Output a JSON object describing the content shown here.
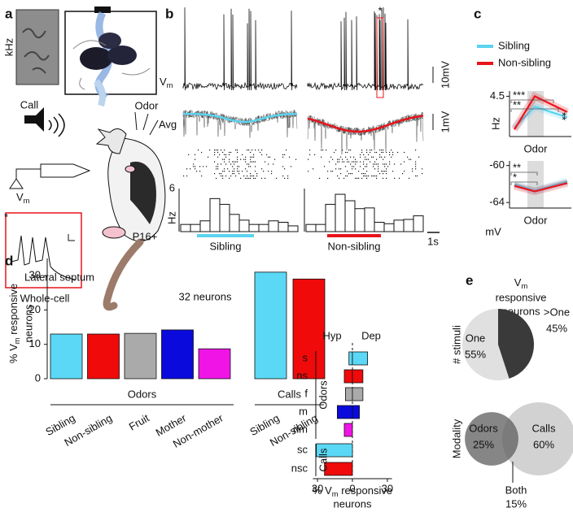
{
  "figure": {
    "panel_labels": [
      "a",
      "b",
      "c",
      "d",
      "e"
    ],
    "panel_a": {
      "freq_label": "kHz",
      "call_label": "Call",
      "odor_label": "Odor",
      "vm_label": [
        "V",
        "m"
      ],
      "asterisk": "*",
      "recording_label": "Whole-cell",
      "age_label": "P16+"
    },
    "panel_b": {
      "vm_label": [
        "V",
        "m"
      ],
      "avg_label": "Avg",
      "scale_top": "10mV",
      "scale_avg": "1mV",
      "asterisk": "*",
      "time_scale": "1s"
    },
    "panel_d": {
      "title": "Lateral septum"
    }
  },
  "chart_data": [
    {
      "type": "bar",
      "y_label": "Hz",
      "ylim": [
        0,
        6
      ],
      "yticks": [
        6
      ],
      "categories": [
        null,
        null,
        null,
        null,
        null,
        null,
        null,
        null,
        null,
        null,
        null,
        null
      ],
      "series": [
        {
          "name": "Sibling",
          "color": "#5bd3f0",
          "values": [
            1,
            1,
            1.5,
            4.6,
            3.8,
            2.4,
            1.6,
            1,
            1,
            1.5,
            1.3,
            0.8
          ]
        },
        {
          "name": "Non-sibling",
          "color": "#e8141c",
          "values": [
            1,
            1,
            3.8,
            5.2,
            4.3,
            3.2,
            3.3,
            1.3,
            1.1,
            1.6,
            1.7,
            2.2
          ]
        }
      ]
    },
    {
      "type": "line",
      "y_label": "Hz",
      "x_label": "Odor",
      "ylim": [
        2.2,
        4.8
      ],
      "yticks": [
        4.5
      ],
      "categories": [
        null,
        null,
        null
      ],
      "legend": "top",
      "series": [
        {
          "name": "Sibling",
          "color": "#5bd3f0",
          "values": [
            2.7,
            3.9,
            3.3
          ]
        },
        {
          "name": "Non-sibling",
          "color": "#e8141c",
          "values": [
            2.6,
            4.5,
            3.6
          ]
        }
      ],
      "annotations": [
        {
          "text": "***",
          "color": "#e8141c"
        },
        {
          "text": "**",
          "color": "#5bd3f0"
        },
        {
          "text": "**",
          "color": "#000000"
        }
      ]
    },
    {
      "type": "line",
      "y_label": "mV",
      "x_label": "Odor",
      "ylim": [
        -64.6,
        -59.5
      ],
      "yticks": [
        -60,
        -64
      ],
      "categories": [
        null,
        null,
        null
      ],
      "series": [
        {
          "color": "#5bd3f0",
          "values": [
            -62.0,
            -62.7,
            -61.7
          ]
        },
        {
          "color": "#e8141c",
          "values": [
            -62.2,
            -62.8,
            -61.9
          ]
        }
      ],
      "annotations": [
        {
          "text": "**",
          "color": "#e8141c"
        },
        {
          "text": "*",
          "color": "#5bd3f0"
        }
      ]
    },
    {
      "type": "bar",
      "y_label": [
        "% V",
        "m",
        " responsive",
        "neurons"
      ],
      "annotation": "32 neurons",
      "ylim": [
        0,
        35
      ],
      "yticks": [
        0,
        10,
        20,
        30
      ],
      "categories": [
        "Sibling",
        "Non-sibling",
        "Fruit",
        "Mother",
        "Non-mother",
        "Sibling",
        "Non-sibling"
      ],
      "values": [
        13,
        13,
        13.2,
        14.2,
        8.7,
        31,
        29
      ],
      "colors": [
        "#5bd8f5",
        "#f00a0a",
        "#aaaaaa",
        "#0a0adc",
        "#f014e6",
        "#5bd8f5",
        "#f00a0a"
      ],
      "groups": [
        "Odors",
        "Calls"
      ]
    },
    {
      "type": "hbar",
      "categories": [
        "s",
        "ns",
        "f",
        "m",
        "nm",
        "sc",
        "nsc"
      ],
      "series": [
        {
          "name": "Hyp",
          "values": [
            -3,
            -7,
            -6,
            -13,
            -7,
            -31,
            -24
          ]
        },
        {
          "name": "Dep",
          "values": [
            13,
            9,
            9,
            6,
            0,
            0,
            0
          ]
        }
      ],
      "colors": [
        "#5bd8f5",
        "#f00a0a",
        "#aaaaaa",
        "#0a0adc",
        "#f014e6",
        "#5bd8f5",
        "#f00a0a"
      ],
      "groups": [
        "Odors",
        "Calls"
      ],
      "xlim": [
        -34,
        34
      ],
      "xticks": [
        {
          "value": -30,
          "label": "30"
        },
        0,
        30
      ],
      "x_label": [
        "% V",
        "m",
        " responsive",
        "neurons"
      ]
    },
    {
      "type": "pie",
      "title": [
        "V",
        "m",
        "responsive",
        "neurons"
      ],
      "y_label": "# stimuli",
      "categories": [
        "One",
        ">One"
      ],
      "values": [
        55,
        45
      ],
      "value_labels": [
        "55%",
        "45%"
      ],
      "colors": [
        "#e0e0e0",
        "#3a3a3a"
      ]
    },
    {
      "type": "venn",
      "y_label": "Modality",
      "categories": [
        "Odors",
        "Calls",
        "Both"
      ],
      "values": [
        25,
        60,
        15
      ],
      "value_labels": [
        "25%",
        "60%",
        "15%"
      ],
      "circle_colors": [
        "#5e5e5e",
        "#d2d2d2"
      ]
    }
  ]
}
